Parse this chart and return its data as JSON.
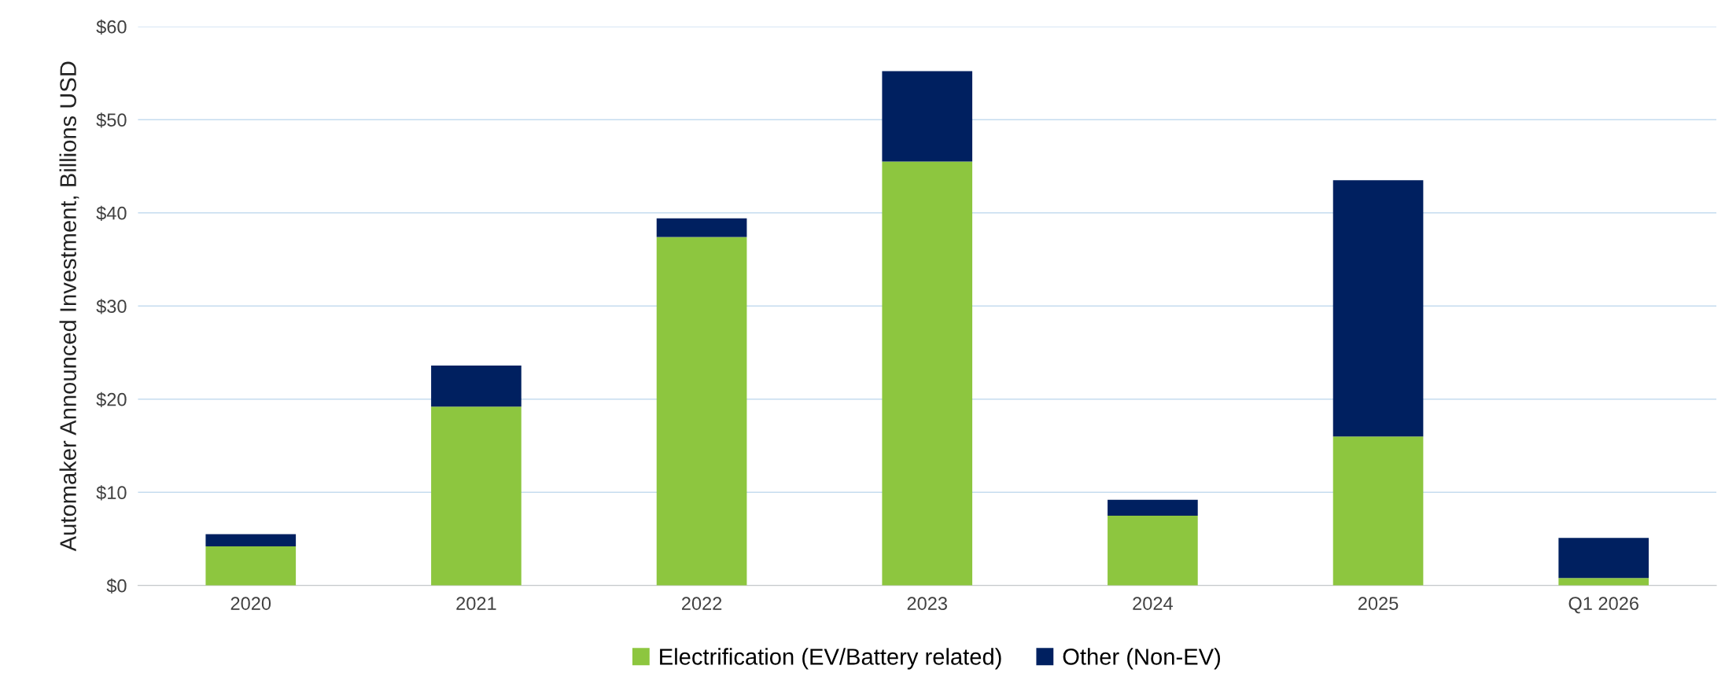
{
  "chart_data": {
    "type": "bar",
    "stacked": true,
    "ylabel": "Automaker Announced Investment, Billions USD",
    "categories": [
      "2020",
      "2021",
      "2022",
      "2023",
      "2024",
      "2025",
      "Q1 2026"
    ],
    "series": [
      {
        "name": "Electrification (EV/Battery related)",
        "color": "#8dc63f",
        "values": [
          4.2,
          19.2,
          37.4,
          45.5,
          7.5,
          16.0,
          0.8
        ]
      },
      {
        "name": "Other (Non-EV)",
        "color": "#002060",
        "values": [
          1.3,
          4.4,
          2.0,
          9.7,
          1.7,
          27.5,
          4.3
        ]
      }
    ],
    "ylim": [
      0,
      60
    ],
    "yticks": [
      {
        "value": 0,
        "label": "$0"
      },
      {
        "value": 10,
        "label": "$10"
      },
      {
        "value": 20,
        "label": "$20"
      },
      {
        "value": 30,
        "label": "$30"
      },
      {
        "value": 40,
        "label": "$40"
      },
      {
        "value": 50,
        "label": "$50"
      },
      {
        "value": 60,
        "label": "$60"
      }
    ],
    "grid": "y",
    "legend": "bottom"
  }
}
